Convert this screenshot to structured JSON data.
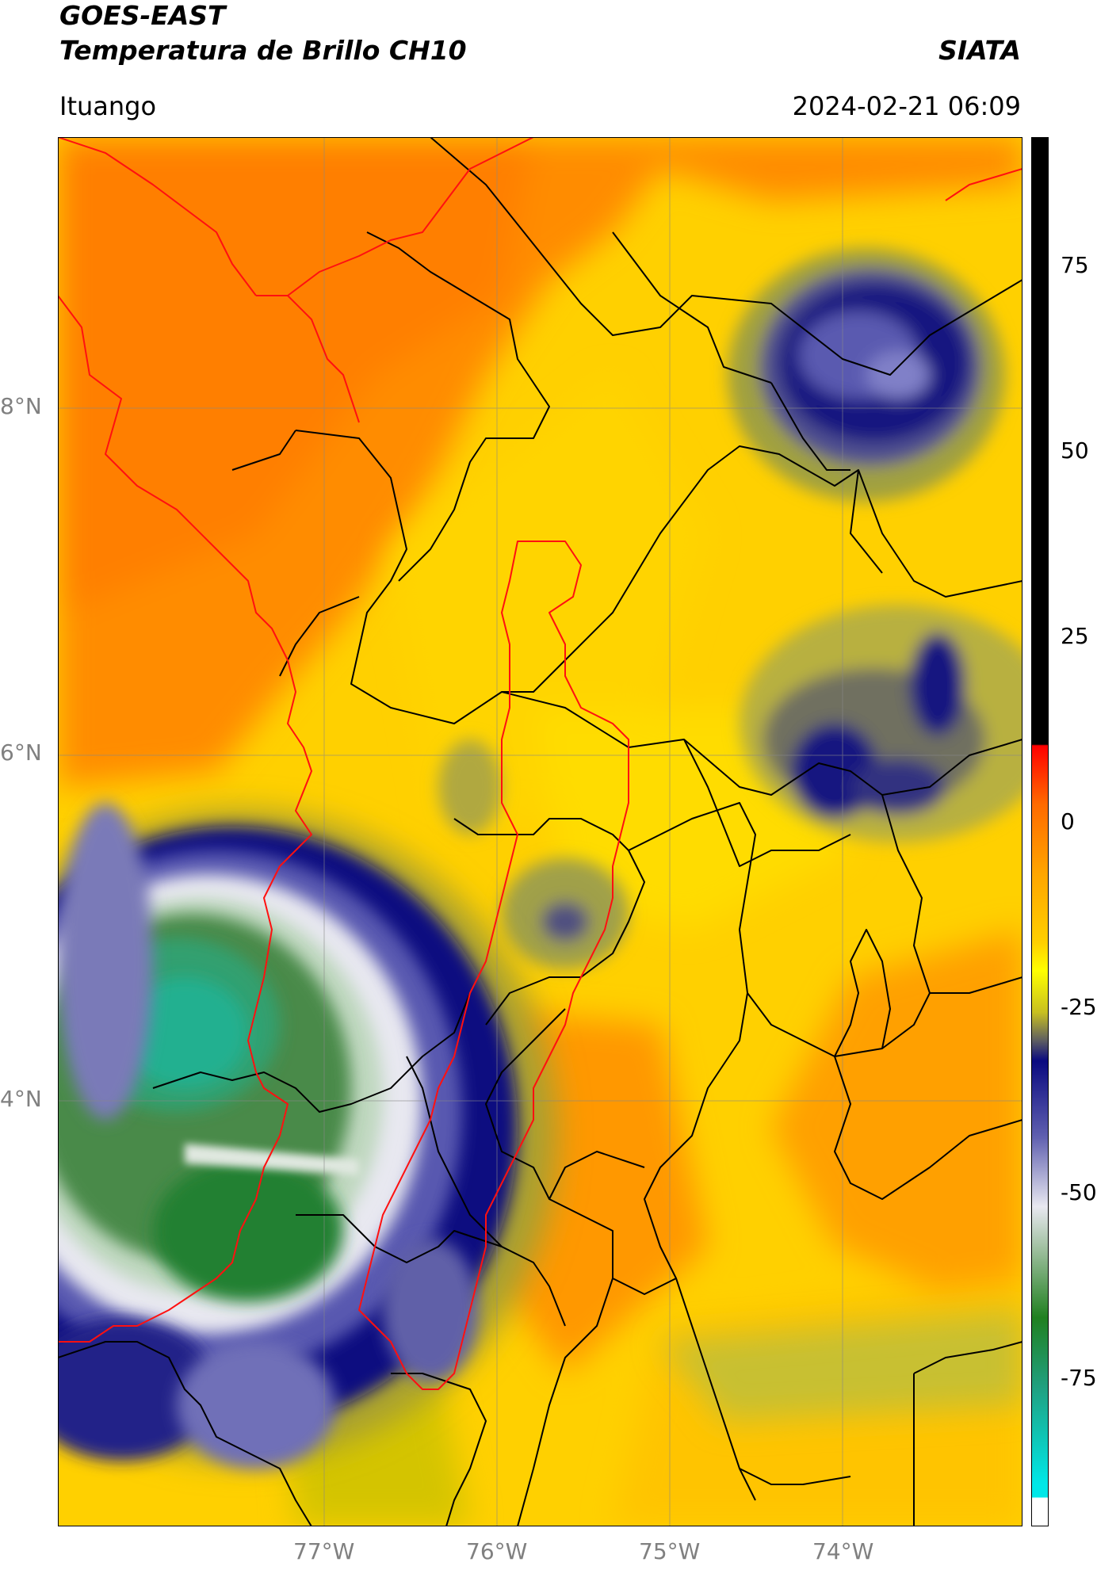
{
  "header": {
    "satellite": "GOES-EAST",
    "product": "Temperatura de Brillo CH10",
    "agency": "SIATA",
    "location": "Ituango",
    "datetime": "2024-02-21 06:09"
  },
  "map": {
    "lat_ticks": [
      "8°N",
      "6°N",
      "4°N"
    ],
    "lon_ticks": [
      "77°W",
      "76°W",
      "75°W",
      "74°W"
    ],
    "colors": {
      "border_national": "#000000",
      "border_basin": "#ff0000",
      "warm": "#ff8c00",
      "mild": "#ffd400",
      "cold": "#10108a"
    }
  },
  "colorbar": {
    "ticks": [
      "75",
      "50",
      "25",
      "0",
      "-25",
      "-50",
      "-75"
    ],
    "min": -97,
    "max": 90
  }
}
